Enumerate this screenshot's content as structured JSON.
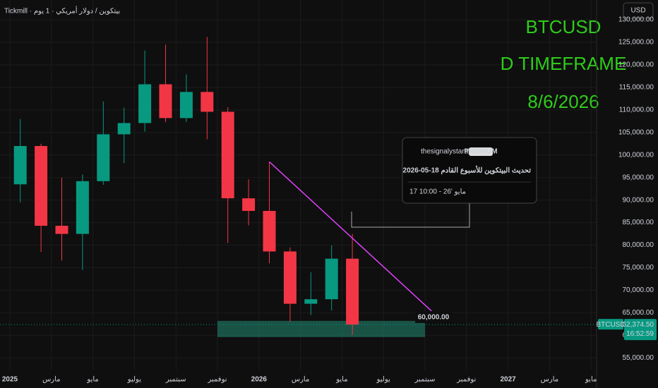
{
  "chart_data": {
    "type": "candlestick",
    "symbol_line": "Tickmill · بيتكوين / دولار أمريكي · 1 يوم",
    "annotation": [
      "BTCUSD",
      "D TIMEFRAME",
      "8/6/2026"
    ],
    "currency": "USD",
    "x": [
      "2025-01",
      "2025-02",
      "2025-03",
      "2025-04",
      "2025-05",
      "2025-06",
      "2025-07",
      "2025-08",
      "2025-09",
      "2025-10",
      "2025-11",
      "2025-12",
      "2026-01",
      "2026-02",
      "2026-03",
      "2026-04",
      "2026-05"
    ],
    "open": [
      93500,
      102000,
      84300,
      82500,
      94200,
      104600,
      107100,
      115700,
      108200,
      114000,
      109600,
      90400,
      87600,
      78600,
      67000,
      68000,
      77000
    ],
    "high": [
      108000,
      102500,
      95000,
      95700,
      111900,
      110500,
      123200,
      124500,
      117900,
      126200,
      110600,
      94600,
      98500,
      79500,
      74000,
      80000,
      82500
    ],
    "low": [
      89500,
      78500,
      76600,
      74500,
      93400,
      98200,
      105200,
      107300,
      107300,
      103500,
      80500,
      84400,
      76000,
      63000,
      64500,
      65500,
      60100
    ],
    "close": [
      102000,
      84300,
      82500,
      94200,
      104600,
      107100,
      115700,
      108200,
      114000,
      109600,
      90400,
      87600,
      78600,
      67000,
      68000,
      77000,
      62374.5
    ],
    "up_color": "#089981",
    "down_color": "#f23645",
    "ylim": [
      53000,
      134400
    ],
    "yticks": [
      {
        "value": 55000,
        "label": "55,000.00"
      },
      {
        "value": 60000,
        "label": "60,000.00"
      },
      {
        "value": 65000,
        "label": "65,000.00"
      },
      {
        "value": 70000,
        "label": "70,000.00"
      },
      {
        "value": 75000,
        "label": "75,000.00"
      },
      {
        "value": 80000,
        "label": "80,000.00"
      },
      {
        "value": 85000,
        "label": "85,000.00"
      },
      {
        "value": 90000,
        "label": "90,000.00"
      },
      {
        "value": 95000,
        "label": "95,000.00"
      },
      {
        "value": 100000,
        "label": "100,000.00"
      },
      {
        "value": 105000,
        "label": "105,000.00"
      },
      {
        "value": 110000,
        "label": "110,000.00"
      },
      {
        "value": 115000,
        "label": "115,000.00"
      },
      {
        "value": 120000,
        "label": "120,000.00"
      },
      {
        "value": 125000,
        "label": "125,000.00"
      },
      {
        "value": 130000,
        "label": "130,000.00"
      }
    ],
    "xticks": [
      {
        "value": "2025-01",
        "label": "2025"
      },
      {
        "value": "2025-03",
        "label": "مارس"
      },
      {
        "value": "2025-05",
        "label": "مايو"
      },
      {
        "value": "2025-07",
        "label": "يوليو"
      },
      {
        "value": "2025-09",
        "label": "سبتمبر"
      },
      {
        "value": "2025-11",
        "label": "نوفمبر"
      },
      {
        "value": "2026-01",
        "label": "2026"
      },
      {
        "value": "2026-03",
        "label": "مارس"
      },
      {
        "value": "2026-05",
        "label": "مايو"
      },
      {
        "value": "2026-07",
        "label": "يوليو"
      },
      {
        "value": "2026-09",
        "label": "سبتمبر"
      },
      {
        "value": "2026-11",
        "label": "نوفمبر"
      },
      {
        "value": "2027-01",
        "label": "2027"
      },
      {
        "value": "2027-03",
        "label": "مارس"
      },
      {
        "value": "2027-05",
        "label": "مايو"
      }
    ],
    "trendline": {
      "x": [
        "2026-01",
        "2026-09"
      ],
      "values": [
        98500,
        64600
      ],
      "color": "#e040fb"
    },
    "zone": {
      "x": [
        "2025-11",
        "2026-09"
      ],
      "range": [
        59600,
        63200
      ],
      "label": "60,000.00",
      "color": "#1e6b5a"
    },
    "last_price": {
      "value": 62374.5,
      "label": "62,374.50",
      "name": "BTCUSD",
      "countdown": "16:52:59"
    },
    "idea": {
      "author": "thesignalystarabic",
      "badge": "PREMIUM",
      "title": "تحديث البيتكوين للأسبوع القادم 18-05-2026",
      "time": "17 10:00 - 26' مايو"
    }
  }
}
